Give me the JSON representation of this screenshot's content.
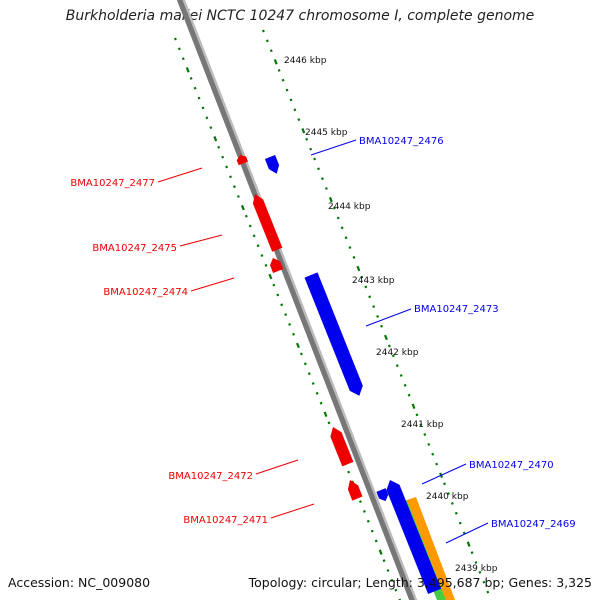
{
  "title": "Burkholderia mallei NCTC 10247 chromosome I, complete genome",
  "footer": {
    "accession": "Accession: NC_009080",
    "summary": "Topology: circular; Length: 3,495,687 bp; Genes: 3,325"
  },
  "colors": {
    "forward": "#0000ee",
    "reverse": "#ee0000",
    "tick": "#007700",
    "backbone": "#888888",
    "track_green": "#44cc44",
    "track_orange": "#ff9900"
  },
  "kbp_marks": [
    "2446 kbp",
    "2445 kbp",
    "2444 kbp",
    "2443 kbp",
    "2442 kbp",
    "2441 kbp",
    "2440 kbp",
    "2439 kbp"
  ],
  "genes": [
    {
      "id": "BMA10247_2476",
      "strand": "forward",
      "color": "#0000ee"
    },
    {
      "id": "BMA10247_2477",
      "strand": "reverse",
      "color": "#ee0000"
    },
    {
      "id": "BMA10247_2475",
      "strand": "reverse",
      "color": "#ee0000"
    },
    {
      "id": "BMA10247_2474",
      "strand": "reverse",
      "color": "#ee0000"
    },
    {
      "id": "BMA10247_2473",
      "strand": "forward",
      "color": "#0000ee"
    },
    {
      "id": "BMA10247_2472",
      "strand": "reverse",
      "color": "#ee0000"
    },
    {
      "id": "BMA10247_2470",
      "strand": "forward",
      "color": "#0000ee"
    },
    {
      "id": "BMA10247_2471",
      "strand": "reverse",
      "color": "#ee0000"
    },
    {
      "id": "BMA10247_2469",
      "strand": "forward",
      "color": "#0000ee"
    }
  ]
}
